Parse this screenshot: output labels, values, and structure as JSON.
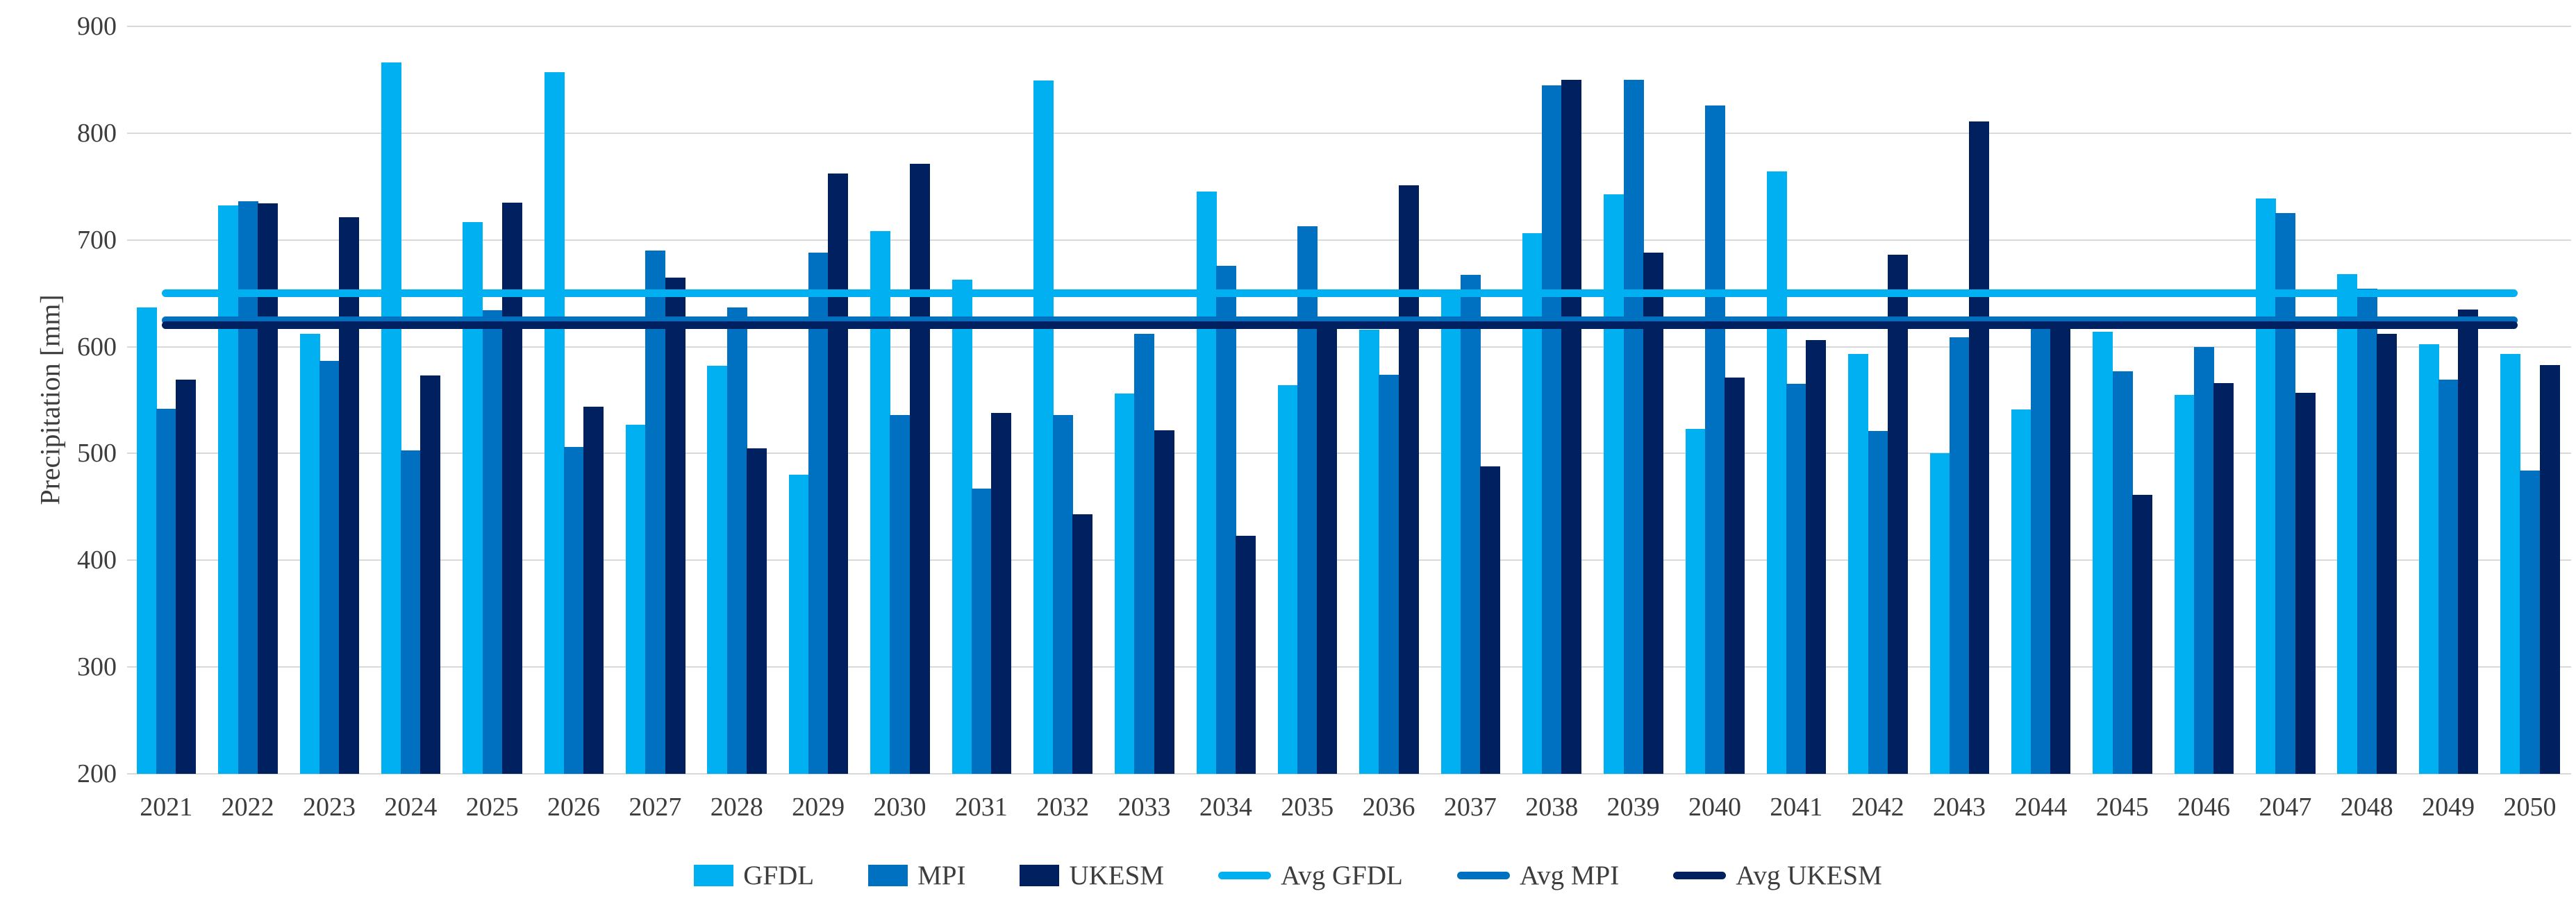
{
  "chart_data": {
    "type": "bar",
    "title": "",
    "xlabel": "",
    "ylabel": "Precipitation [mm]",
    "ylim": [
      200,
      900
    ],
    "yticks": [
      900,
      800,
      700,
      600,
      500,
      400,
      300,
      200
    ],
    "grid": true,
    "legend_position": "bottom",
    "categories": [
      "2021",
      "2022",
      "2023",
      "2024",
      "2025",
      "2026",
      "2027",
      "2028",
      "2029",
      "2030",
      "2031",
      "2032",
      "2033",
      "2034",
      "2035",
      "2036",
      "2037",
      "2038",
      "2039",
      "2040",
      "2041",
      "2042",
      "2043",
      "2044",
      "2045",
      "2046",
      "2047",
      "2048",
      "2049",
      "2050"
    ],
    "series": [
      {
        "name": "GFDL",
        "color": "#00B0F0",
        "values": [
          637,
          732,
          612,
          866,
          717,
          857,
          527,
          582,
          480,
          708,
          663,
          849,
          556,
          745,
          564,
          616,
          648,
          706,
          743,
          523,
          764,
          593,
          500,
          541,
          614,
          555,
          739,
          668,
          602,
          593
        ]
      },
      {
        "name": "MPI",
        "color": "#0070C0",
        "values": [
          542,
          736,
          587,
          503,
          634,
          506,
          690,
          637,
          688,
          536,
          467,
          536,
          612,
          676,
          713,
          574,
          667,
          845,
          850,
          826,
          565,
          521,
          609,
          620,
          577,
          600,
          725,
          654,
          569,
          484
        ]
      },
      {
        "name": "UKESM",
        "color": "#002060",
        "values": [
          569,
          734,
          721,
          573,
          735,
          544,
          665,
          505,
          762,
          771,
          538,
          443,
          522,
          423,
          622,
          751,
          488,
          850,
          688,
          571,
          606,
          686,
          811,
          621,
          461,
          566,
          557,
          612,
          635,
          583
        ]
      }
    ],
    "avg_lines": [
      {
        "name": "Avg GFDL",
        "color": "#00B0F0",
        "value": 650
      },
      {
        "name": "Avg MPI",
        "color": "#0070C0",
        "value": 625
      },
      {
        "name": "Avg UKESM",
        "color": "#002060",
        "value": 620
      }
    ]
  },
  "legend": {
    "items": [
      "GFDL",
      "MPI",
      "UKESM",
      "Avg GFDL",
      "Avg MPI",
      "Avg UKESM"
    ]
  },
  "colors": {
    "gridline": "#D9D9D9",
    "text": "#3D3D3D",
    "background": "#FFFFFF"
  }
}
